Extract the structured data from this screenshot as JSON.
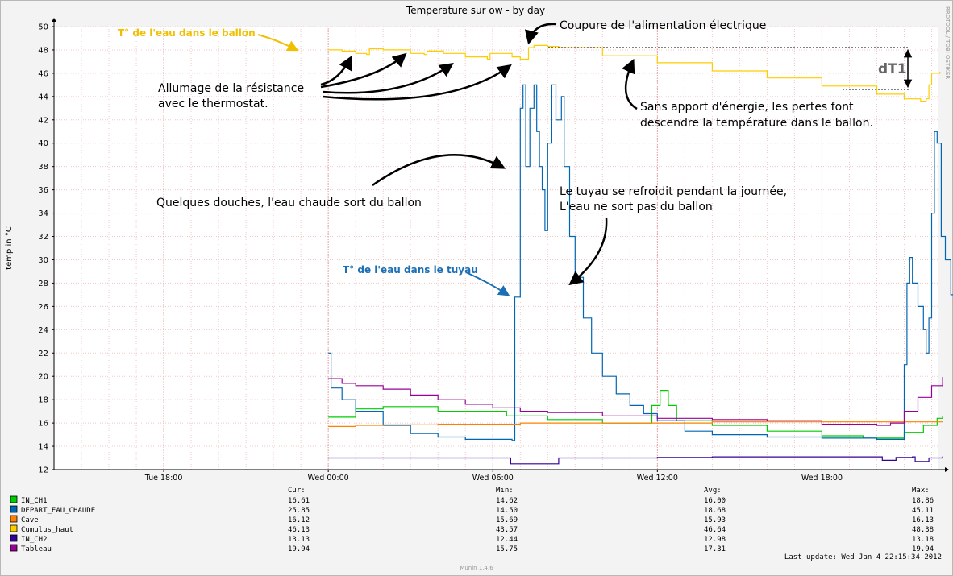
{
  "chart_data": {
    "type": "line",
    "title": "Temperature sur ow - by day",
    "ylabel": "temp in °C",
    "ylim": [
      12,
      50
    ],
    "yticks": [
      12,
      14,
      16,
      18,
      20,
      22,
      24,
      26,
      28,
      30,
      32,
      34,
      36,
      38,
      40,
      42,
      44,
      46,
      48,
      50
    ],
    "xlim": [
      "Tue 14:00",
      "Wed 22:15"
    ],
    "xticks": [
      {
        "label": "Tue 18:00",
        "hour": 18
      },
      {
        "label": "Wed 00:00",
        "hour": 24
      },
      {
        "label": "Wed 06:00",
        "hour": 30
      },
      {
        "label": "Wed 12:00",
        "hour": 36
      },
      {
        "label": "Wed 18:00",
        "hour": 42
      }
    ],
    "grid": true,
    "side_text": "RRDTOOL / TOBI OETIKER",
    "series": [
      {
        "name": "IN_CH1",
        "color": "#00cc00",
        "points": [
          [
            24.0,
            16.5
          ],
          [
            24.4,
            16.5
          ],
          [
            25.0,
            17.2
          ],
          [
            26.0,
            17.4
          ],
          [
            28.0,
            17.0
          ],
          [
            30.5,
            16.6
          ],
          [
            32.0,
            16.3
          ],
          [
            34.0,
            16.0
          ],
          [
            35.5,
            16.0
          ],
          [
            35.8,
            17.5
          ],
          [
            36.1,
            18.8
          ],
          [
            36.4,
            17.5
          ],
          [
            36.7,
            16.2
          ],
          [
            38.0,
            15.8
          ],
          [
            40.0,
            15.3
          ],
          [
            42.0,
            14.9
          ],
          [
            43.5,
            14.7
          ],
          [
            44.5,
            14.7
          ],
          [
            45.0,
            15.2
          ],
          [
            45.7,
            15.8
          ],
          [
            46.2,
            16.4
          ],
          [
            46.4,
            16.6
          ]
        ]
      },
      {
        "name": "DEPART_EAU_CHAUDE",
        "color": "#0066b3",
        "points": [
          [
            24.0,
            22.0
          ],
          [
            24.1,
            21.5
          ],
          [
            24.1,
            19.0
          ],
          [
            24.5,
            18.0
          ],
          [
            25.0,
            17.0
          ],
          [
            26.0,
            15.8
          ],
          [
            27.0,
            15.1
          ],
          [
            28.0,
            14.8
          ],
          [
            29.0,
            14.6
          ],
          [
            30.7,
            14.5
          ],
          [
            30.8,
            14.5
          ],
          [
            30.8,
            26.8
          ],
          [
            31.0,
            43.0
          ],
          [
            31.1,
            45.0
          ],
          [
            31.2,
            38.0
          ],
          [
            31.35,
            43.0
          ],
          [
            31.5,
            45.0
          ],
          [
            31.6,
            41.0
          ],
          [
            31.7,
            38.0
          ],
          [
            31.8,
            36.0
          ],
          [
            31.9,
            32.5
          ],
          [
            32.0,
            40.0
          ],
          [
            32.15,
            45.0
          ],
          [
            32.3,
            42.0
          ],
          [
            32.5,
            44.0
          ],
          [
            32.6,
            38.0
          ],
          [
            32.8,
            32.0
          ],
          [
            33.0,
            28.5
          ],
          [
            33.3,
            25.0
          ],
          [
            33.6,
            22.0
          ],
          [
            34.0,
            20.0
          ],
          [
            34.5,
            18.5
          ],
          [
            35.0,
            17.5
          ],
          [
            35.5,
            16.8
          ],
          [
            36.0,
            16.2
          ],
          [
            37.0,
            15.3
          ],
          [
            38.0,
            15.0
          ],
          [
            40.0,
            14.8
          ],
          [
            42.0,
            14.7
          ],
          [
            44.0,
            14.6
          ],
          [
            44.9,
            14.6
          ],
          [
            45.0,
            21.0
          ],
          [
            45.1,
            28.0
          ],
          [
            45.2,
            30.2
          ],
          [
            45.3,
            28.0
          ],
          [
            45.5,
            26.0
          ],
          [
            45.7,
            24.0
          ],
          [
            45.8,
            22.0
          ],
          [
            45.9,
            25.0
          ],
          [
            46.0,
            34.0
          ],
          [
            46.1,
            41.0
          ],
          [
            46.2,
            40.0
          ],
          [
            46.35,
            32.0
          ],
          [
            46.5,
            30.0
          ],
          [
            46.6,
            30.0
          ],
          [
            46.7,
            27.0
          ],
          [
            46.8,
            25.85
          ]
        ]
      },
      {
        "name": "Cave",
        "color": "#ff8000",
        "points": [
          [
            24.0,
            15.7
          ],
          [
            25.0,
            15.8
          ],
          [
            26.0,
            15.85
          ],
          [
            28.0,
            15.9
          ],
          [
            30.0,
            15.9
          ],
          [
            31.0,
            16.0
          ],
          [
            33.0,
            16.0
          ],
          [
            35.0,
            16.0
          ],
          [
            38.0,
            16.1
          ],
          [
            41.0,
            16.1
          ],
          [
            44.0,
            16.1
          ],
          [
            46.4,
            16.12
          ]
        ]
      },
      {
        "name": "Cumulus_haut",
        "color": "#ffcc00",
        "points": [
          [
            24.0,
            48.0
          ],
          [
            24.5,
            47.9
          ],
          [
            25.0,
            47.7
          ],
          [
            25.4,
            47.6
          ],
          [
            25.5,
            48.1
          ],
          [
            26.0,
            48.0
          ],
          [
            27.0,
            47.7
          ],
          [
            27.5,
            47.6
          ],
          [
            27.6,
            47.9
          ],
          [
            28.2,
            47.7
          ],
          [
            29.0,
            47.4
          ],
          [
            29.8,
            47.2
          ],
          [
            29.9,
            47.7
          ],
          [
            30.7,
            47.4
          ],
          [
            31.0,
            47.2
          ],
          [
            31.2,
            47.2
          ],
          [
            31.3,
            48.2
          ],
          [
            31.5,
            48.38
          ],
          [
            32.0,
            48.3
          ],
          [
            32.1,
            48.3
          ],
          [
            32.4,
            48.2
          ],
          [
            34.0,
            47.5
          ],
          [
            36.0,
            46.9
          ],
          [
            38.0,
            46.2
          ],
          [
            40.0,
            45.6
          ],
          [
            42.0,
            44.9
          ],
          [
            44.0,
            44.2
          ],
          [
            45.0,
            43.8
          ],
          [
            45.6,
            43.6
          ],
          [
            45.8,
            43.8
          ],
          [
            45.9,
            45.0
          ],
          [
            46.0,
            46.0
          ],
          [
            46.3,
            46.13
          ]
        ]
      },
      {
        "name": "IN_CH2",
        "color": "#330099",
        "points": [
          [
            24.0,
            13.0
          ],
          [
            25.0,
            13.0
          ],
          [
            27.0,
            13.0
          ],
          [
            29.0,
            13.0
          ],
          [
            30.6,
            13.0
          ],
          [
            30.65,
            12.5
          ],
          [
            32.3,
            12.5
          ],
          [
            32.4,
            13.0
          ],
          [
            34.0,
            13.0
          ],
          [
            36.0,
            13.05
          ],
          [
            38.0,
            13.1
          ],
          [
            40.0,
            13.1
          ],
          [
            42.0,
            13.1
          ],
          [
            44.0,
            13.1
          ],
          [
            44.2,
            12.8
          ],
          [
            44.6,
            12.8
          ],
          [
            44.7,
            13.05
          ],
          [
            45.3,
            13.1
          ],
          [
            45.4,
            12.7
          ],
          [
            45.8,
            12.7
          ],
          [
            45.9,
            13.0
          ],
          [
            46.3,
            13.0
          ],
          [
            46.4,
            13.13
          ]
        ]
      },
      {
        "name": "Tableau",
        "color": "#990099",
        "points": [
          [
            24.0,
            19.8
          ],
          [
            24.5,
            19.4
          ],
          [
            25.0,
            19.2
          ],
          [
            25.5,
            19.2
          ],
          [
            26.0,
            18.9
          ],
          [
            27.0,
            18.4
          ],
          [
            28.0,
            18.0
          ],
          [
            29.0,
            17.6
          ],
          [
            30.0,
            17.3
          ],
          [
            31.0,
            17.0
          ],
          [
            32.0,
            16.9
          ],
          [
            34.0,
            16.6
          ],
          [
            36.0,
            16.4
          ],
          [
            38.0,
            16.3
          ],
          [
            40.0,
            16.2
          ],
          [
            42.0,
            15.9
          ],
          [
            44.0,
            15.8
          ],
          [
            44.5,
            16.0
          ],
          [
            45.0,
            17.0
          ],
          [
            45.5,
            18.2
          ],
          [
            46.0,
            19.2
          ],
          [
            46.4,
            19.94
          ]
        ]
      }
    ],
    "annotations": [
      {
        "text": "T° de l'eau dans le ballon",
        "color": "#f0c000"
      },
      {
        "text": "Coupure de l'alimentation électrique"
      },
      {
        "text": "Allumage de la résistance"
      },
      {
        "text": "avec le thermostat."
      },
      {
        "text": "dT1"
      },
      {
        "text": "Sans apport d'énergie, les pertes font"
      },
      {
        "text": "descendre la température dans le ballon."
      },
      {
        "text": "Quelques douches, l'eau chaude sort du ballon"
      },
      {
        "text": "Le tuyau se refroidit pendant la journée,"
      },
      {
        "text": "L'eau ne sort pas du ballon"
      },
      {
        "text": "T° de l'eau dans le tuyau",
        "color": "#1a6fb5"
      }
    ]
  },
  "legend": {
    "headers": {
      "cur": "Cur:",
      "min": "Min:",
      "avg": "Avg:",
      "max": "Max:"
    },
    "rows": [
      {
        "name": "IN_CH1",
        "color": "#00cc00",
        "cur": "16.61",
        "min": "14.62",
        "avg": "16.00",
        "max": "18.86"
      },
      {
        "name": "DEPART_EAU_CHAUDE",
        "color": "#0066b3",
        "cur": "25.85",
        "min": "14.50",
        "avg": "18.68",
        "max": "45.11"
      },
      {
        "name": "Cave",
        "color": "#ff8000",
        "cur": "16.12",
        "min": "15.69",
        "avg": "15.93",
        "max": "16.13"
      },
      {
        "name": "Cumulus_haut",
        "color": "#ffcc00",
        "cur": "46.13",
        "min": "43.57",
        "avg": "46.64",
        "max": "48.38"
      },
      {
        "name": "IN_CH2",
        "color": "#330099",
        "cur": "13.13",
        "min": "12.44",
        "avg": "12.98",
        "max": "13.18"
      },
      {
        "name": "Tableau",
        "color": "#990099",
        "cur": "19.94",
        "min": "15.75",
        "avg": "17.31",
        "max": "19.94"
      }
    ]
  },
  "footer": {
    "last_update": "Last update: Wed Jan  4 22:15:34 2012",
    "version": "Munin 1.4.6"
  }
}
